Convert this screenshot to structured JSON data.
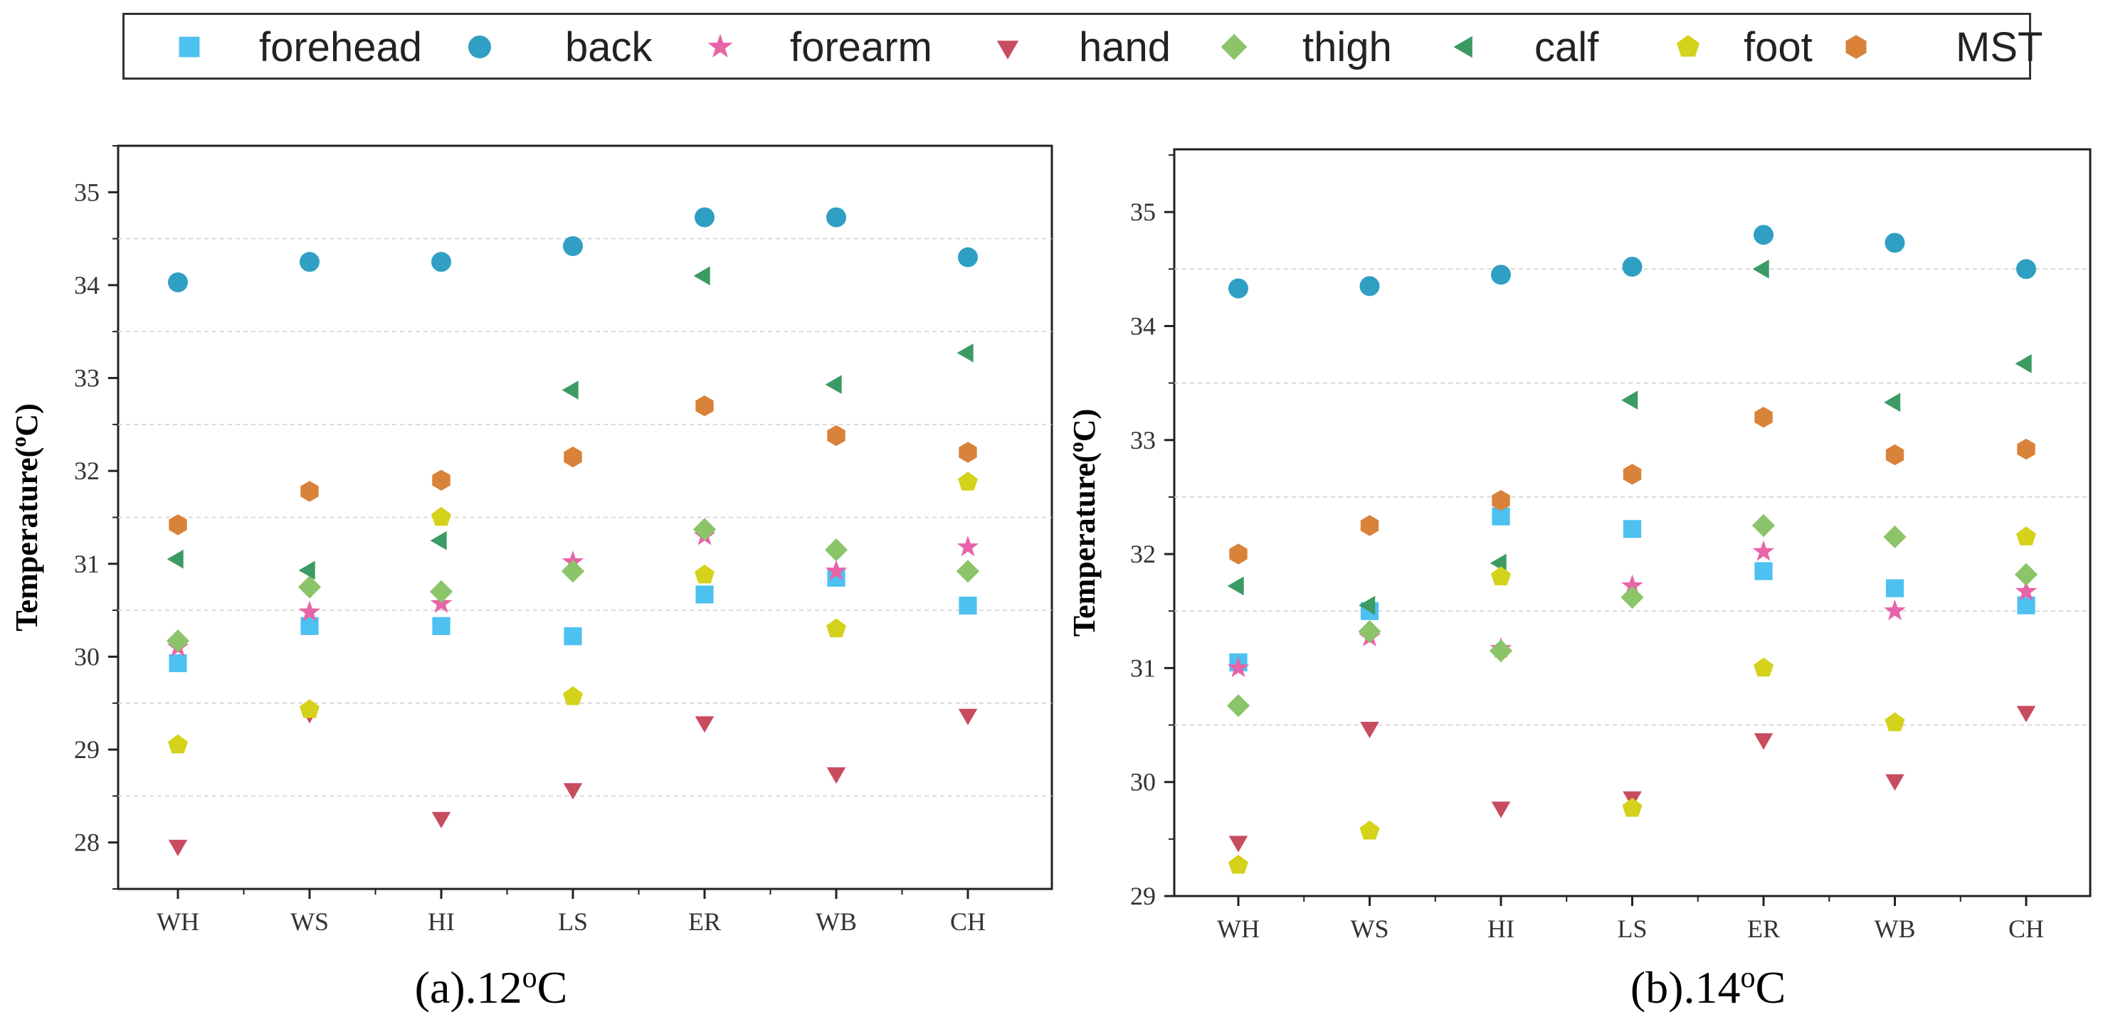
{
  "legend": [
    {
      "key": "forehead",
      "label": "forehead",
      "marker": "square",
      "color": "#4DC1F0"
    },
    {
      "key": "back",
      "label": "back",
      "marker": "circle",
      "color": "#2F9FC3"
    },
    {
      "key": "forearm",
      "label": "forearm",
      "marker": "star",
      "color": "#E864A8"
    },
    {
      "key": "hand",
      "label": "hand",
      "marker": "triangle-down",
      "color": "#C84C60"
    },
    {
      "key": "thigh",
      "label": "thigh",
      "marker": "diamond",
      "color": "#8CC46A"
    },
    {
      "key": "calf",
      "label": "calf",
      "marker": "triangle-left",
      "color": "#3C9A64"
    },
    {
      "key": "foot",
      "label": "foot",
      "marker": "pentagon",
      "color": "#D4D21A"
    },
    {
      "key": "MST",
      "label": "MST",
      "marker": "hexagon",
      "color": "#D9823A"
    }
  ],
  "chart_data": [
    {
      "type": "scatter",
      "id": "a",
      "caption": "(a).12",
      "caption_sup": "o",
      "caption_unit": "C",
      "ylabel": "Temperature(",
      "ylabel_sup": "o",
      "ylabel_unit": "C)",
      "categories": [
        "WH",
        "WS",
        "HI",
        "LS",
        "ER",
        "WB",
        "CH"
      ],
      "ylim": [
        27.5,
        35.5
      ],
      "yticks": [
        28,
        29,
        30,
        31,
        32,
        33,
        34,
        35
      ],
      "grid_lines": [
        28.5,
        29.5,
        30.5,
        31.5,
        32.5,
        33.5,
        34.5
      ],
      "series": [
        {
          "key": "forehead",
          "values": [
            29.93,
            30.33,
            30.33,
            30.22,
            30.67,
            30.85,
            30.55
          ]
        },
        {
          "key": "back",
          "values": [
            34.03,
            34.25,
            34.25,
            34.42,
            34.73,
            34.73,
            34.3
          ]
        },
        {
          "key": "forearm",
          "values": [
            30.1,
            30.48,
            30.57,
            31.02,
            31.3,
            30.92,
            31.18
          ]
        },
        {
          "key": "hand",
          "values": [
            27.97,
            29.4,
            28.27,
            28.58,
            29.3,
            28.75,
            29.38
          ]
        },
        {
          "key": "thigh",
          "values": [
            30.17,
            30.75,
            30.7,
            30.92,
            31.37,
            31.15,
            30.92
          ]
        },
        {
          "key": "calf",
          "values": [
            31.05,
            30.93,
            31.25,
            32.87,
            34.1,
            32.93,
            33.27
          ]
        },
        {
          "key": "foot",
          "values": [
            29.05,
            29.43,
            31.5,
            29.57,
            30.88,
            30.3,
            31.88
          ]
        },
        {
          "key": "MST",
          "values": [
            31.42,
            31.78,
            31.9,
            32.15,
            32.7,
            32.38,
            32.2
          ]
        }
      ]
    },
    {
      "type": "scatter",
      "id": "b",
      "caption": "(b).14",
      "caption_sup": "o",
      "caption_unit": "C",
      "ylabel": "Temperature(",
      "ylabel_sup": "o",
      "ylabel_unit": "C)",
      "categories": [
        "WH",
        "WS",
        "HI",
        "LS",
        "ER",
        "WB",
        "CH"
      ],
      "ylim": [
        29.0,
        35.55
      ],
      "yticks": [
        29,
        30,
        31,
        32,
        33,
        34,
        35
      ],
      "grid_lines": [
        30.5,
        31.5,
        32.5,
        33.5,
        34.5
      ],
      "series": [
        {
          "key": "forehead",
          "values": [
            31.05,
            31.5,
            32.33,
            32.22,
            31.85,
            31.7,
            31.55
          ]
        },
        {
          "key": "back",
          "values": [
            34.33,
            34.35,
            34.45,
            34.52,
            34.8,
            34.73,
            34.5
          ]
        },
        {
          "key": "forearm",
          "values": [
            31.0,
            31.27,
            31.17,
            31.72,
            32.02,
            31.5,
            31.67
          ]
        },
        {
          "key": "hand",
          "values": [
            29.48,
            30.48,
            29.78,
            29.87,
            30.38,
            30.02,
            30.62
          ]
        },
        {
          "key": "thigh",
          "values": [
            30.67,
            31.32,
            31.15,
            31.62,
            32.25,
            32.15,
            31.82
          ]
        },
        {
          "key": "calf",
          "values": [
            31.72,
            31.55,
            31.92,
            33.35,
            34.5,
            33.33,
            33.67
          ]
        },
        {
          "key": "foot",
          "values": [
            29.27,
            29.57,
            31.8,
            29.77,
            31.0,
            30.52,
            32.15
          ]
        },
        {
          "key": "MST",
          "values": [
            32.0,
            32.25,
            32.47,
            32.7,
            33.2,
            32.87,
            32.92
          ]
        }
      ]
    }
  ]
}
